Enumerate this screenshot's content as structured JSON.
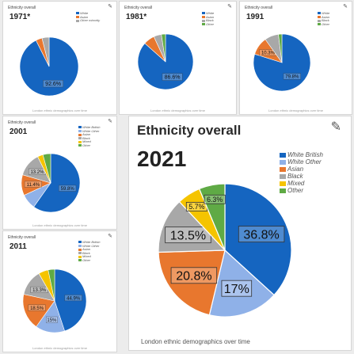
{
  "common": {
    "edit_icon": "pencil-icon"
  },
  "colors": {
    "white_british": "#1565c0",
    "white_other": "#8fb1e8",
    "asian": "#e8772e",
    "black": "#a8a8a8",
    "mixed": "#f5c400",
    "other": "#5faa45"
  },
  "cards": {
    "c1971": {
      "title": "Ethnicity overall",
      "year": "1971*",
      "legend": [
        "White",
        "Asian",
        "Other minority"
      ],
      "labels": [
        "92.6%"
      ],
      "caption": "London ethnic demographics over time"
    },
    "c1981": {
      "title": "Ethnicity overall",
      "year": "1981*",
      "legend": [
        "White",
        "Asian",
        "Black",
        "Other"
      ],
      "labels": [
        "86.6%"
      ],
      "caption": "London ethnic demographics over time"
    },
    "c1991": {
      "title": "Ethnicity overall",
      "year": "1991",
      "legend": [
        "White",
        "Asian",
        "Black",
        "Other"
      ],
      "labels": [
        "79.8%",
        "10.3%"
      ],
      "caption": "London ethnic demographics over time"
    },
    "c2001": {
      "title": "Ethnicity overall",
      "year": "2001",
      "legend": [
        "White British",
        "White Other",
        "Asian",
        "Black",
        "Mixed",
        "Other"
      ],
      "labels": [
        "59.8%",
        "11.4%",
        "13.2%"
      ],
      "caption": "London ethnic demographics over time"
    },
    "c2011": {
      "title": "Ethnicity overall",
      "year": "2011",
      "legend": [
        "White British",
        "White Other",
        "Asian",
        "Black",
        "Mixed",
        "Other"
      ],
      "labels": [
        "44.9%",
        "18.5%",
        "13.3%",
        "15%"
      ],
      "caption": "London ethnic demographics over time"
    }
  },
  "main": {
    "title": "Ethnicity overall",
    "year": "2021",
    "legend": [
      "White British",
      "White Other",
      "Asian",
      "Black",
      "Mixed",
      "Other"
    ],
    "labels": [
      "36.8%",
      "17%",
      "20.8%",
      "13.5%",
      "5.7%",
      "6.3%"
    ],
    "caption": "London ethnic demographics over time"
  },
  "chart_data": [
    {
      "type": "pie",
      "title": "1971*",
      "categories": [
        "White",
        "Asian",
        "Other minority"
      ],
      "values": [
        92.6,
        3.5,
        3.9
      ]
    },
    {
      "type": "pie",
      "title": "1981*",
      "categories": [
        "White",
        "Asian",
        "Black",
        "Other"
      ],
      "values": [
        86.6,
        6.5,
        4.5,
        2.4
      ]
    },
    {
      "type": "pie",
      "title": "1991",
      "categories": [
        "White",
        "Asian",
        "Black",
        "Other"
      ],
      "values": [
        79.8,
        10.3,
        7.9,
        2.0
      ]
    },
    {
      "type": "pie",
      "title": "2001",
      "categories": [
        "White British",
        "White Other",
        "Asian",
        "Black",
        "Mixed",
        "Other"
      ],
      "values": [
        59.8,
        8.3,
        11.4,
        13.2,
        3.0,
        4.3
      ]
    },
    {
      "type": "pie",
      "title": "2011",
      "categories": [
        "White British",
        "White Other",
        "Asian",
        "Black",
        "Mixed",
        "Other"
      ],
      "values": [
        44.9,
        15.0,
        18.5,
        13.3,
        5.0,
        3.3
      ]
    },
    {
      "type": "pie",
      "title": "2021",
      "categories": [
        "White British",
        "White Other",
        "Asian",
        "Black",
        "Mixed",
        "Other"
      ],
      "values": [
        36.8,
        17.0,
        20.8,
        13.5,
        5.7,
        6.3
      ]
    }
  ]
}
